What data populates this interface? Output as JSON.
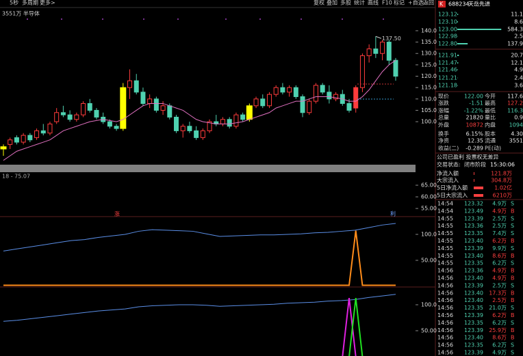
{
  "toolbar_left": [
    "5秒",
    "多周期",
    "更多>"
  ],
  "toolbar_right": [
    "复权",
    "叠加",
    "多股",
    "统计",
    "画线",
    "F10",
    "标记",
    "+自选",
    "返回"
  ],
  "chart_data": [
    {
      "type": "candlestick",
      "title": "3551万 半导体",
      "annotation": "137.50",
      "open": [
        88,
        90,
        93,
        91,
        94,
        93,
        96,
        95,
        100,
        104,
        103,
        101,
        103,
        108,
        105,
        102,
        100,
        98,
        97,
        115,
        118,
        113,
        108,
        110,
        105,
        107,
        102,
        96,
        98,
        96,
        93,
        96,
        100,
        99,
        101,
        98,
        103,
        101,
        107,
        110,
        107,
        112,
        115,
        113,
        115,
        111,
        104,
        109,
        116,
        113,
        110,
        112,
        108,
        106,
        115,
        129,
        132,
        130,
        135,
        127
      ],
      "high": [
        90,
        93,
        94,
        95,
        95,
        97,
        99,
        100,
        106,
        107,
        105,
        104,
        109,
        110,
        106,
        104,
        101,
        99,
        117,
        123,
        121,
        115,
        112,
        111,
        109,
        108,
        103,
        99,
        100,
        98,
        97,
        101,
        103,
        102,
        102,
        104,
        104,
        108,
        111,
        112,
        113,
        116,
        117,
        116,
        116,
        112,
        110,
        117,
        117,
        116,
        113,
        114,
        110,
        116,
        130,
        134,
        137.5,
        136,
        136,
        128
      ],
      "low": [
        85,
        88,
        90,
        90,
        91,
        92,
        94,
        94,
        99,
        102,
        100,
        100,
        102,
        104,
        101,
        99,
        97,
        96,
        96,
        110,
        112,
        107,
        106,
        104,
        103,
        101,
        95,
        93,
        95,
        92,
        92,
        95,
        98,
        98,
        97,
        97,
        100,
        100,
        106,
        106,
        106,
        111,
        112,
        111,
        110,
        102,
        103,
        108,
        112,
        108,
        109,
        107,
        104,
        104,
        113,
        126,
        128,
        127,
        125,
        118
      ],
      "close": [
        89,
        92,
        91,
        94,
        92,
        96,
        95,
        99,
        104,
        103,
        101,
        103,
        108,
        105,
        102,
        100,
        98,
        97,
        115,
        118,
        113,
        108,
        110,
        105,
        107,
        102,
        96,
        98,
        96,
        93,
        96,
        100,
        99,
        101,
        98,
        103,
        101,
        107,
        110,
        107,
        112,
        115,
        113,
        115,
        111,
        104,
        109,
        116,
        113,
        110,
        112,
        108,
        105,
        115,
        129,
        132,
        130,
        135,
        127,
        120
      ],
      "ma": [
        83,
        85,
        87,
        88,
        89,
        90,
        91,
        92,
        94,
        96,
        97,
        98,
        99,
        100,
        100.5,
        101,
        100.5,
        100,
        101,
        103,
        105,
        107,
        108,
        108,
        108,
        107,
        106,
        105,
        103,
        101,
        100,
        99.5,
        99,
        99,
        99,
        99.5,
        100,
        101,
        102,
        103,
        104,
        106,
        107,
        108,
        109,
        109,
        110,
        111,
        111,
        111,
        110.5,
        110,
        109,
        109,
        111,
        114,
        118,
        122,
        125,
        127
      ],
      "up_color": "#ff3c3c",
      "down_color": "#4fd1b0",
      "highlight_color": "#ffff00",
      "highlight": [
        0,
        18,
        37
      ],
      "filled": [
        53
      ],
      "ma_color": "#e070c0",
      "ylim": [
        81.1,
        149.9
      ],
      "yticks": [
        {
          "value": 140,
          "label": "140.0"
        },
        {
          "value": 135,
          "label": "135.0"
        },
        {
          "value": 130,
          "label": "130.0"
        },
        {
          "value": 125,
          "label": "125.0"
        },
        {
          "value": 120,
          "label": "120.0"
        },
        {
          "value": 115,
          "label": "115.0"
        },
        {
          "value": 110,
          "label": "110.0"
        },
        {
          "value": 105,
          "label": "105.0"
        },
        {
          "value": 100,
          "label": "100.0"
        }
      ]
    },
    {
      "type": "line",
      "title": "18 - 75.07",
      "series": [],
      "ylim": [
        51.5,
        70.6
      ],
      "yticks": [
        {
          "value": 65,
          "label": "65.00"
        },
        {
          "value": 60,
          "label": "60.00"
        },
        {
          "value": 55,
          "label": "55.00"
        }
      ],
      "markers": [
        "涨",
        "利"
      ]
    },
    {
      "type": "line",
      "ylim": [
        -1.3,
        134.2
      ],
      "yticks": [
        {
          "value": 100,
          "label": "100.0"
        },
        {
          "value": 50,
          "label": "50.00"
        }
      ],
      "series": [
        {
          "color": "#5b8fe8",
          "values": [
            68,
            72,
            76,
            80,
            84,
            88,
            90,
            94,
            97,
            100,
            106,
            109,
            108,
            107,
            106,
            101,
            96,
            97,
            98,
            99,
            99,
            100,
            101,
            103,
            104,
            106,
            108,
            113,
            118,
            121
          ]
        },
        {
          "color": "#ff8c1a",
          "values": [
            2,
            2,
            2,
            2,
            2,
            2,
            2,
            2,
            2,
            2,
            2,
            2,
            2,
            2,
            2,
            2,
            2,
            2,
            2,
            2,
            2,
            2,
            2,
            2,
            2,
            2,
            2,
            2,
            2,
            2,
            2,
            2,
            2,
            2,
            2,
            2,
            2,
            2,
            2,
            2,
            2,
            2,
            2,
            2,
            2,
            2,
            2,
            2,
            2,
            2,
            2,
            2,
            2,
            107,
            2,
            2,
            2,
            2,
            2,
            2
          ]
        }
      ]
    },
    {
      "type": "line",
      "ylim": [
        1.3,
        134.2
      ],
      "yticks": [
        {
          "value": 100,
          "label": "100.0"
        },
        {
          "value": 50,
          "label": "50.00"
        }
      ],
      "series": [
        {
          "color": "#5b8fe8",
          "values": [
            68,
            70,
            73,
            76,
            79,
            82,
            85,
            88,
            90,
            92,
            96,
            98,
            99,
            100,
            100,
            99,
            97,
            98,
            99,
            100,
            101,
            103,
            104,
            105,
            107,
            108,
            110,
            114,
            117,
            120
          ]
        },
        {
          "color": "#e020e0",
          "values": [
            0,
            0,
            0,
            0,
            0,
            0,
            0,
            0,
            0,
            0,
            0,
            0,
            0,
            0,
            0,
            0,
            0,
            0,
            0,
            0,
            0,
            0,
            0,
            0,
            0,
            0,
            0,
            0,
            0,
            0,
            0,
            0,
            0,
            0,
            0,
            0,
            0,
            0,
            0,
            0,
            0,
            0,
            0,
            0,
            0,
            0,
            0,
            0,
            0,
            0,
            0,
            0,
            113,
            0,
            0,
            0,
            0,
            0,
            0,
            0
          ]
        },
        {
          "color": "#20e020",
          "values": [
            0,
            0,
            0,
            0,
            0,
            0,
            0,
            0,
            0,
            0,
            0,
            0,
            0,
            0,
            0,
            0,
            0,
            0,
            0,
            0,
            0,
            0,
            0,
            0,
            0,
            0,
            0,
            0,
            0,
            0,
            0,
            0,
            0,
            0,
            0,
            0,
            0,
            0,
            0,
            0,
            0,
            0,
            0,
            0,
            0,
            0,
            0,
            0,
            0,
            0,
            0,
            0,
            0,
            113,
            0,
            0,
            0,
            0,
            0,
            0
          ]
        }
      ]
    }
  ],
  "quote": {
    "badge": "K",
    "code": "688234",
    "name": "天岳先进",
    "asks": [
      [
        "123.12",
        "11.1"
      ],
      [
        "123.10",
        "8.6"
      ],
      [
        "123.00",
        "584.3"
      ],
      [
        "122.98",
        "2.5"
      ],
      [
        "122.80",
        "137.9"
      ]
    ],
    "bids": [
      [
        "121.91",
        "20.7"
      ],
      [
        "121.47",
        "12.1"
      ],
      [
        "121.46",
        "4.9"
      ],
      [
        "121.21",
        "2.4"
      ],
      [
        "121.18",
        "3.6"
      ]
    ],
    "stats": [
      [
        "现价",
        "122.00",
        "今开",
        "117.6"
      ],
      [
        "涨跌",
        "-1.51",
        "最高",
        "127.2"
      ],
      [
        "涨幅",
        "-1.22%",
        "最低",
        "116.3"
      ],
      [
        "总量",
        "21820",
        "量比",
        "0.9"
      ],
      [
        "外盘",
        "10872",
        "内盘",
        "1094"
      ],
      [
        "换手",
        "6.15%",
        "股本",
        "4.30"
      ],
      [
        "净资",
        "12.35",
        "流通",
        "3551"
      ],
      [
        "收益(二)",
        "-0.289",
        "PE(动)",
        ""
      ]
    ],
    "notice": "公司已盈利 投票权无差异",
    "status_label": "交易状态:",
    "status": "闭市阶段",
    "time": "15:30:06",
    "flows": [
      [
        "净流入额",
        "121.8万"
      ],
      [
        "大宗流入",
        "304.8万"
      ],
      [
        "5日净流入额",
        "1.02亿"
      ],
      [
        "5日大宗流入",
        "6210万"
      ]
    ],
    "ticks": [
      [
        "14:54",
        "123.32",
        "4.9万",
        "S"
      ],
      [
        "14:54",
        "123.49",
        "4.9万",
        "B"
      ],
      [
        "14:55",
        "123.39",
        "2.5万",
        "S"
      ],
      [
        "14:55",
        "123.36",
        "2.5万",
        "S"
      ],
      [
        "14:55",
        "123.35",
        "7.4万",
        "S"
      ],
      [
        "14:55",
        "123.40",
        "6.2万",
        "B"
      ],
      [
        "14:55",
        "123.39",
        "9.9万",
        "S"
      ],
      [
        "14:55",
        "123.40",
        "8.6万",
        "B"
      ],
      [
        "14:55",
        "123.35",
        "6.2万",
        "S"
      ],
      [
        "14:56",
        "123.36",
        "4.9万",
        "B"
      ],
      [
        "14:56",
        "123.40",
        "4.9万",
        "B"
      ],
      [
        "14:56",
        "123.39",
        "2.5万",
        "S"
      ],
      [
        "14:56",
        "123.40",
        "17.3万",
        "B"
      ],
      [
        "14:56",
        "123.40",
        "2.5万",
        "B"
      ],
      [
        "14:56",
        "123.35",
        "21.0万",
        "S"
      ],
      [
        "14:56",
        "123.39",
        "6.2万",
        "B"
      ],
      [
        "14:56",
        "123.35",
        "6.2万",
        "S"
      ],
      [
        "14:56",
        "123.39",
        "25.9万",
        "B"
      ],
      [
        "14:56",
        "123.40",
        "8.6万",
        "B"
      ],
      [
        "14:56",
        "123.35",
        "6.2万",
        "S"
      ],
      [
        "14:56",
        "123.39",
        "4.9万",
        "S"
      ]
    ]
  }
}
